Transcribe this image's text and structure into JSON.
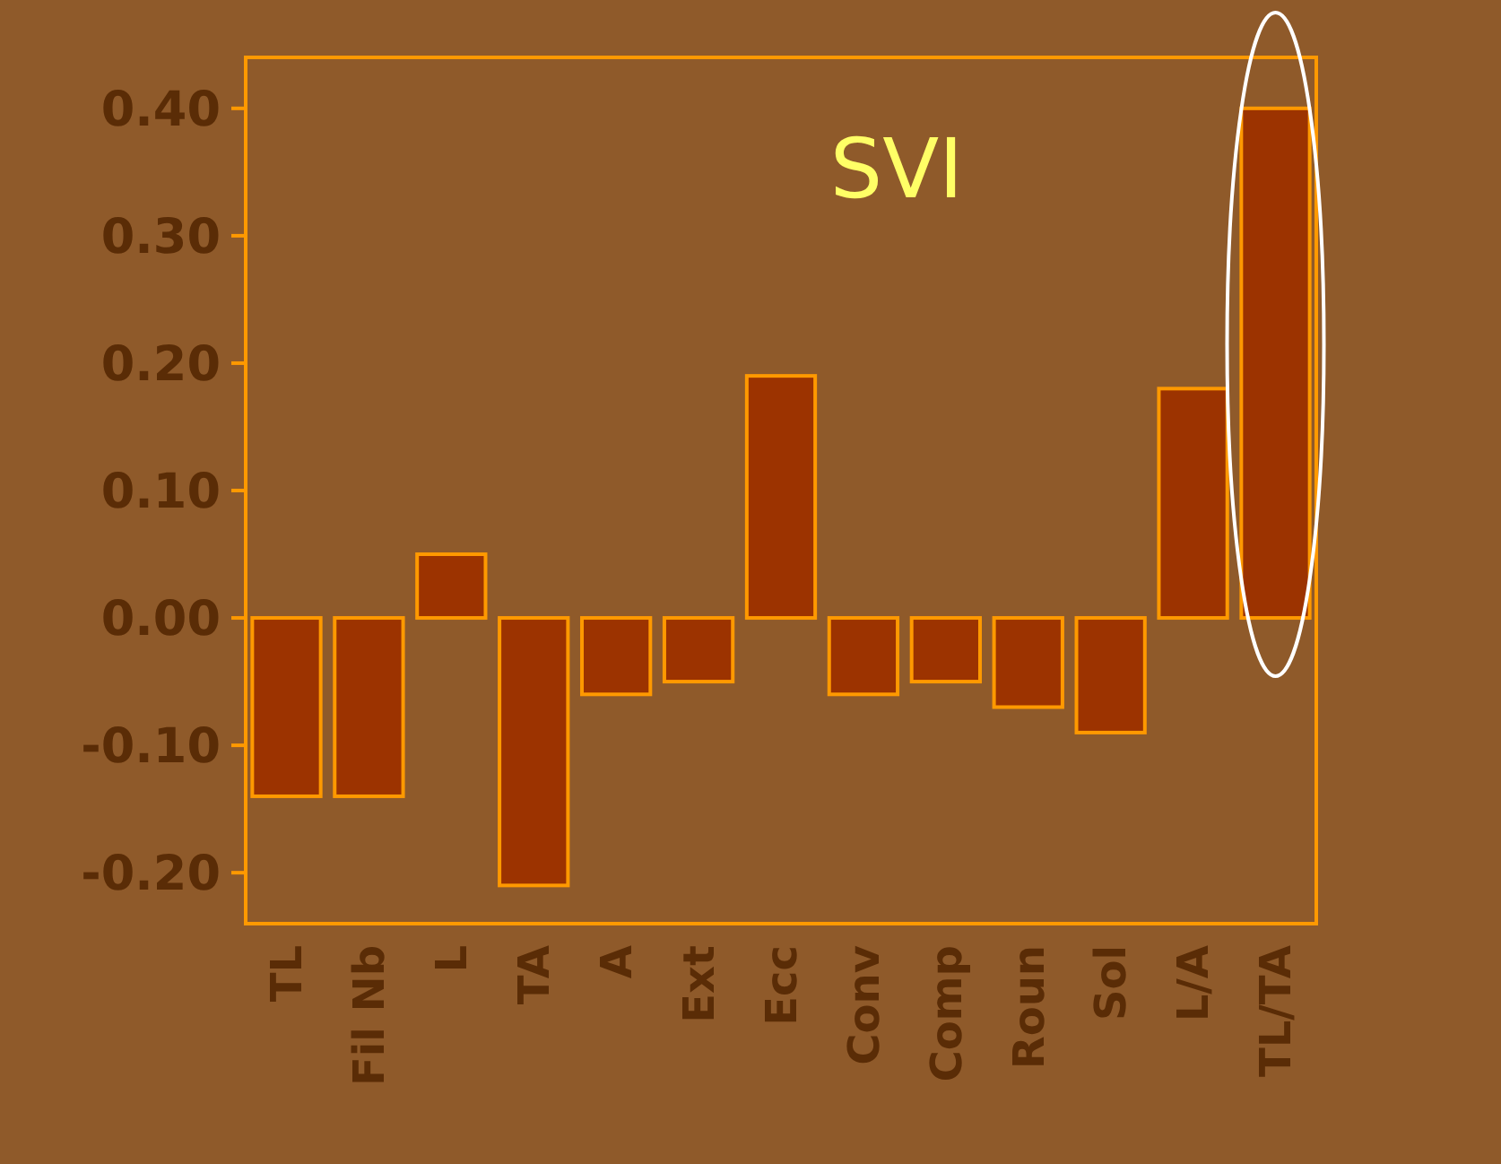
{
  "chart_data": {
    "type": "bar",
    "title": "SVI",
    "categories": [
      "TL",
      "Fil Nb",
      "L",
      "TA",
      "A",
      "Ext",
      "Ecc",
      "Conv",
      "Comp",
      "Roun",
      "Sol",
      "L/A",
      "TL/TA"
    ],
    "values": [
      -0.14,
      -0.14,
      0.05,
      -0.21,
      -0.06,
      -0.05,
      0.19,
      -0.06,
      -0.05,
      -0.07,
      -0.09,
      0.18,
      0.4
    ],
    "color": "#9c3300",
    "ylim": [
      -0.24,
      0.44
    ],
    "yticks": [
      {
        "value": -0.2,
        "label": "-0.20"
      },
      {
        "value": -0.1,
        "label": "-0.10"
      },
      {
        "value": 0,
        "label": "0.00"
      },
      {
        "value": 0.1,
        "label": "0.10"
      },
      {
        "value": 0.2,
        "label": "0.20"
      },
      {
        "value": 0.3,
        "label": "0.30"
      },
      {
        "value": 0.4,
        "label": "0.40"
      }
    ],
    "grid": false
  }
}
